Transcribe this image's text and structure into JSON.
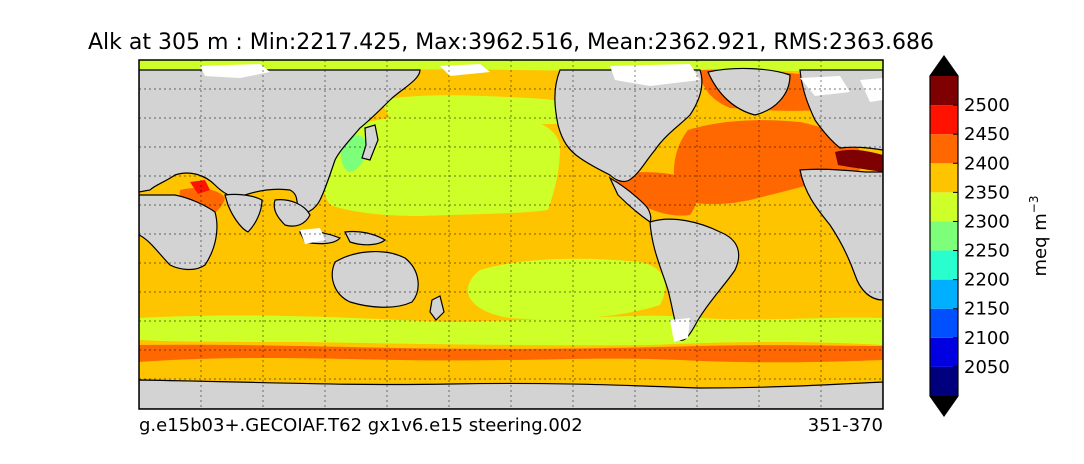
{
  "title": "Alk at 305 m : Min:2217.425, Max:3962.516, Mean:2362.921, RMS:2363.686",
  "footer": {
    "case_name": "g.e15b03+.GECOIAF.T62 gx1v6.e15 steering.002",
    "years": "351-370"
  },
  "colorbar": {
    "unit_label": "meq m",
    "unit_exponent": "−3",
    "extend": "both",
    "under_color": "#000066",
    "over_color": "#7f0000",
    "levels": [
      2000,
      2050,
      2100,
      2150,
      2200,
      2250,
      2300,
      2350,
      2400,
      2450,
      2500,
      2550
    ],
    "colors": [
      "#00007f",
      "#0000e0",
      "#0050ff",
      "#00b0ff",
      "#29ffce",
      "#7dff7a",
      "#ceff29",
      "#ffc400",
      "#ff6800",
      "#ff1300",
      "#7f0000"
    ],
    "tick_labels": [
      "2050",
      "2100",
      "2150",
      "2200",
      "2250",
      "2300",
      "2350",
      "2400",
      "2450",
      "2500"
    ]
  },
  "map": {
    "projection": "cylindrical",
    "grid": true,
    "land_color": "#d3d3d3",
    "missing_color": "#ffffff"
  }
}
